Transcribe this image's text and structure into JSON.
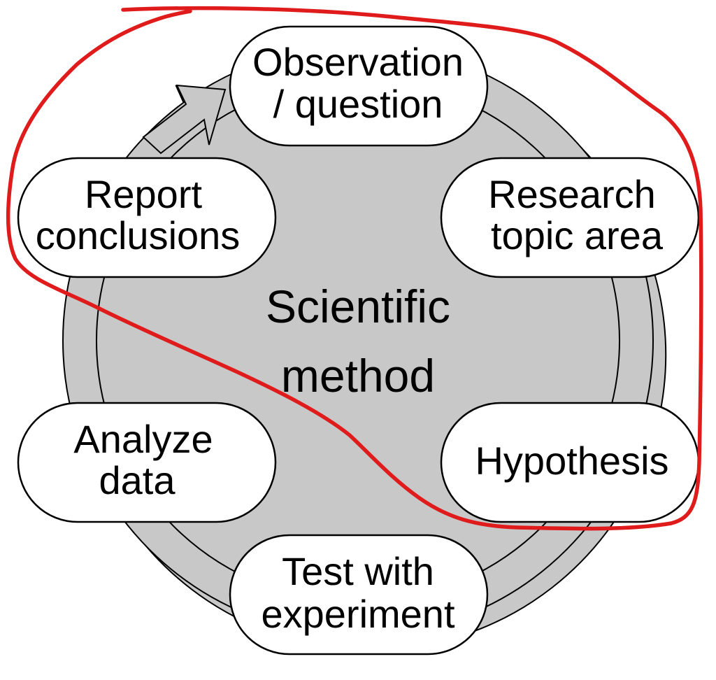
{
  "diagram": {
    "center": {
      "line1": "Scientific",
      "line2": "method"
    },
    "nodes": {
      "observation": {
        "line1": "Observation",
        "line2": "/ question"
      },
      "research": {
        "line1": "Research",
        "line2": "topic area"
      },
      "hypothesis": {
        "line1": "Hypothesis"
      },
      "test": {
        "line1": "Test with",
        "line2": "experiment"
      },
      "analyze": {
        "line1": "Analyze",
        "line2": "data"
      },
      "report": {
        "line1": "Report",
        "line2": "conclusions"
      }
    },
    "colors": {
      "cycle_ring": "#c8c8c8",
      "node_fill": "#ffffff",
      "outline": "#000000",
      "annotation": "#e01b1b"
    }
  }
}
